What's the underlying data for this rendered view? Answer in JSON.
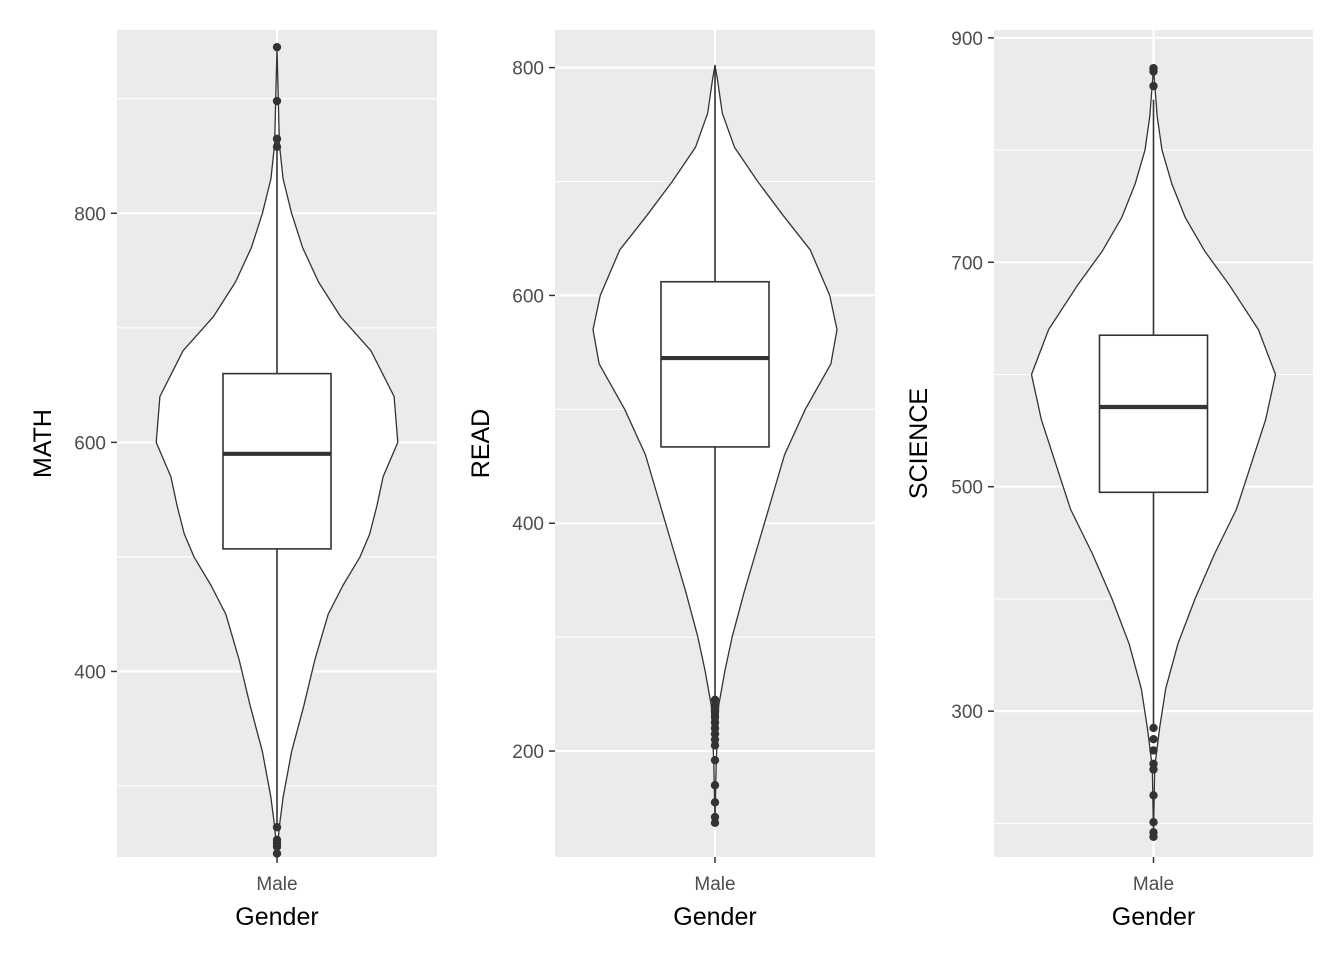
{
  "chart_data": [
    {
      "type": "violin",
      "xlabel": "Gender",
      "ylabel": "MATH",
      "categories": [
        "Male"
      ],
      "ylim": [
        238,
        960
      ],
      "yticks": [
        400,
        600,
        800
      ],
      "grid": true,
      "box": {
        "q1": 507,
        "median": 590,
        "q3": 660,
        "whisker_low": 265,
        "whisker_high": 855
      },
      "outliers": [
        945,
        898,
        865,
        858,
        264,
        253,
        250,
        247,
        241
      ],
      "density": [
        [
          241,
          0.0
        ],
        [
          265,
          0.02
        ],
        [
          290,
          0.05
        ],
        [
          330,
          0.12
        ],
        [
          370,
          0.22
        ],
        [
          410,
          0.31
        ],
        [
          450,
          0.42
        ],
        [
          475,
          0.54
        ],
        [
          500,
          0.68
        ],
        [
          520,
          0.76
        ],
        [
          545,
          0.82
        ],
        [
          570,
          0.87
        ],
        [
          600,
          0.99
        ],
        [
          640,
          0.96
        ],
        [
          680,
          0.77
        ],
        [
          710,
          0.52
        ],
        [
          740,
          0.34
        ],
        [
          770,
          0.21
        ],
        [
          800,
          0.12
        ],
        [
          830,
          0.05
        ],
        [
          860,
          0.02
        ],
        [
          945,
          0.0
        ]
      ]
    },
    {
      "type": "violin",
      "xlabel": "Gender",
      "ylabel": "READ",
      "categories": [
        "Male"
      ],
      "ylim": [
        107,
        833
      ],
      "yticks": [
        200,
        400,
        600,
        800
      ],
      "grid": true,
      "box": {
        "q1": 467,
        "median": 545,
        "q3": 612,
        "whisker_low": 247,
        "whisker_high": 802
      },
      "outliers": [
        245,
        240,
        235,
        230,
        225,
        220,
        215,
        210,
        205,
        192,
        170,
        155,
        142,
        137
      ],
      "density": [
        [
          137,
          0.0
        ],
        [
          190,
          0.01
        ],
        [
          240,
          0.03
        ],
        [
          270,
          0.08
        ],
        [
          300,
          0.14
        ],
        [
          340,
          0.24
        ],
        [
          380,
          0.35
        ],
        [
          420,
          0.46
        ],
        [
          460,
          0.57
        ],
        [
          500,
          0.74
        ],
        [
          540,
          0.95
        ],
        [
          570,
          1.0
        ],
        [
          600,
          0.94
        ],
        [
          640,
          0.78
        ],
        [
          670,
          0.56
        ],
        [
          700,
          0.35
        ],
        [
          730,
          0.16
        ],
        [
          760,
          0.06
        ],
        [
          790,
          0.02
        ],
        [
          802,
          0.0
        ]
      ]
    },
    {
      "type": "violin",
      "xlabel": "Gender",
      "ylabel": "SCIENCE",
      "categories": [
        "Male"
      ],
      "ylim": [
        170,
        907
      ],
      "yticks": [
        300,
        500,
        700,
        900
      ],
      "grid": true,
      "box": {
        "q1": 495,
        "median": 571,
        "q3": 635,
        "whisker_low": 287,
        "whisker_high": 845
      },
      "outliers": [
        873,
        870,
        857,
        285,
        275,
        265,
        253,
        248,
        225,
        201,
        192,
        188
      ],
      "density": [
        [
          188,
          0.0
        ],
        [
          250,
          0.01
        ],
        [
          285,
          0.05
        ],
        [
          320,
          0.1
        ],
        [
          360,
          0.2
        ],
        [
          400,
          0.34
        ],
        [
          440,
          0.5
        ],
        [
          480,
          0.68
        ],
        [
          520,
          0.8
        ],
        [
          560,
          0.92
        ],
        [
          600,
          1.0
        ],
        [
          640,
          0.86
        ],
        [
          680,
          0.62
        ],
        [
          710,
          0.42
        ],
        [
          740,
          0.26
        ],
        [
          770,
          0.15
        ],
        [
          800,
          0.07
        ],
        [
          830,
          0.03
        ],
        [
          873,
          0.0
        ]
      ]
    }
  ]
}
